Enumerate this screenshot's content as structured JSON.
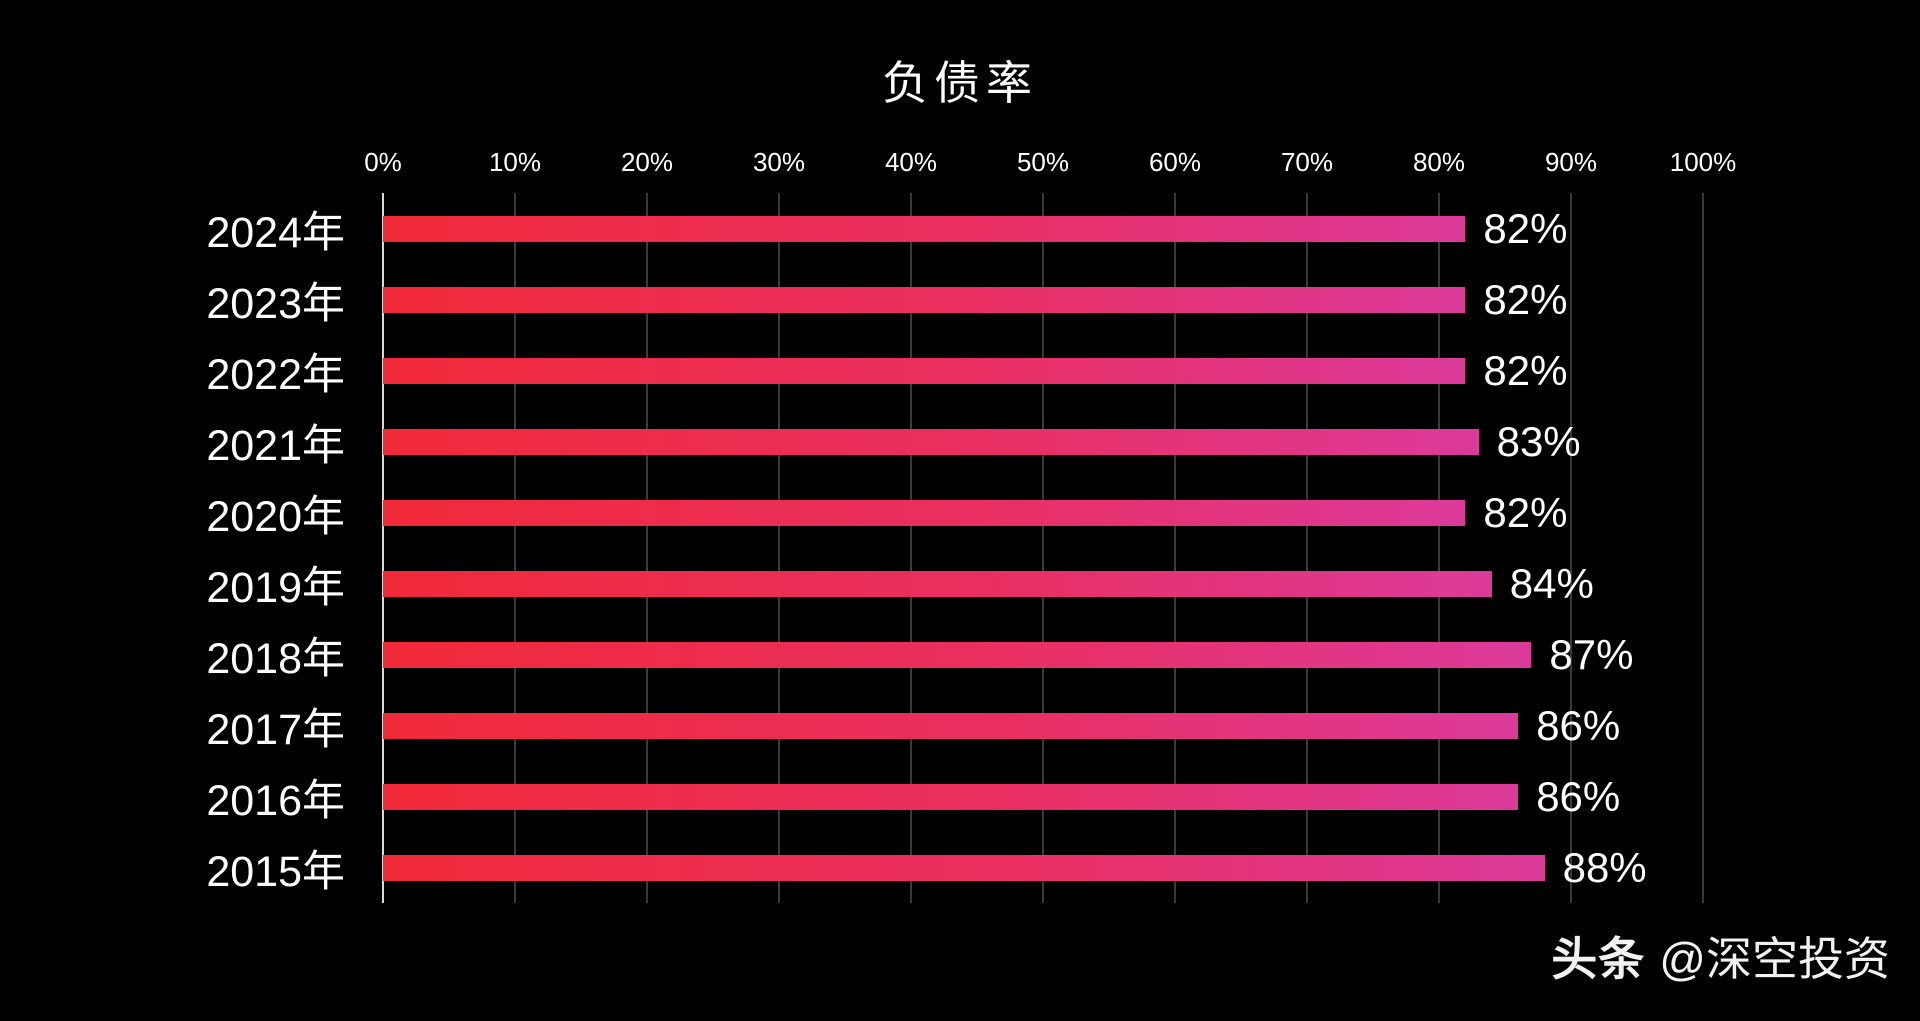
{
  "chart_data": {
    "type": "bar",
    "orientation": "horizontal",
    "title": "负债率",
    "categories": [
      "2024年",
      "2023年",
      "2022年",
      "2021年",
      "2020年",
      "2019年",
      "2018年",
      "2017年",
      "2016年",
      "2015年"
    ],
    "values": [
      82,
      82,
      82,
      83,
      82,
      84,
      87,
      86,
      86,
      88
    ],
    "value_labels": [
      "82%",
      "82%",
      "82%",
      "83%",
      "82%",
      "84%",
      "87%",
      "86%",
      "86%",
      "88%"
    ],
    "x_ticks": [
      "0%",
      "10%",
      "20%",
      "30%",
      "40%",
      "50%",
      "60%",
      "70%",
      "80%",
      "90%",
      "100%"
    ],
    "xlim": [
      0,
      100
    ],
    "grid": true,
    "legend": "none",
    "colors": {
      "background": "#000000",
      "bar_gradient_start": "#f12a39",
      "bar_gradient_mid": "#e92f62",
      "bar_gradient_end": "#dc3a9b",
      "gridline": "#3a3a3a",
      "axis_line": "#d9d9d9",
      "text": "#ffffff"
    }
  },
  "watermark": {
    "brand": "头条",
    "handle": "@深空投资"
  }
}
